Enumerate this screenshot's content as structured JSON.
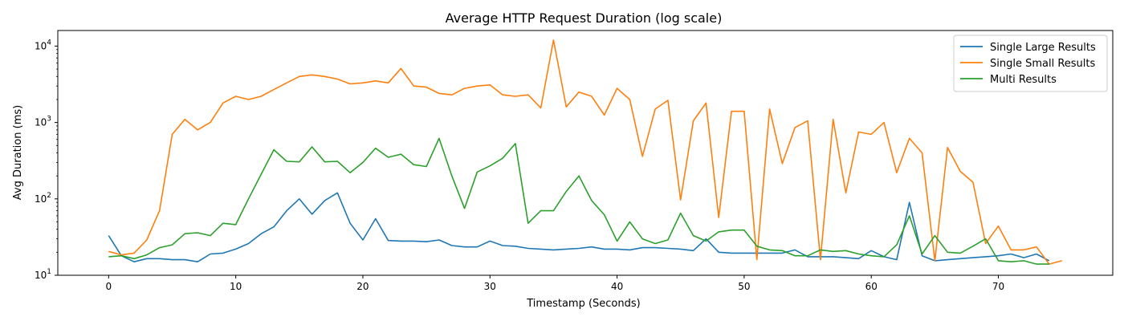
{
  "chart_data": {
    "type": "line",
    "title": "Average HTTP Request Duration (log scale)",
    "xlabel": "Timestamp (Seconds)",
    "ylabel": "Avg Duration (ms)",
    "xlim": [
      -4,
      79
    ],
    "ylim": [
      10,
      16000
    ],
    "yscale": "log",
    "grid": false,
    "legend_position": "top-right",
    "x_ticks": [
      0,
      10,
      20,
      30,
      40,
      50,
      60,
      70
    ],
    "x_tick_labels": [
      "0",
      "10",
      "20",
      "30",
      "40",
      "50",
      "60",
      "70"
    ],
    "y_ticks": [
      10,
      100,
      1000,
      10000
    ],
    "y_tick_labels": [
      "10",
      "10",
      "10",
      "10"
    ],
    "y_tick_exponents": [
      "1",
      "2",
      "3",
      "4"
    ],
    "series": [
      {
        "name": "Single Large Results",
        "color": "#1f77b4",
        "x": [
          0,
          1,
          2,
          3,
          4,
          5,
          6,
          7,
          8,
          9,
          10,
          11,
          12,
          13,
          14,
          15,
          16,
          17,
          18,
          19,
          20,
          21,
          22,
          23,
          24,
          25,
          26,
          27,
          28,
          29,
          30,
          31,
          32,
          33,
          34,
          35,
          36,
          37,
          38,
          39,
          40,
          41,
          42,
          43,
          44,
          45,
          46,
          47,
          48,
          49,
          50,
          51,
          52,
          53,
          54,
          55,
          56,
          57,
          58,
          59,
          60,
          61,
          62,
          63,
          64,
          65,
          66,
          67,
          68,
          69,
          70,
          71,
          72,
          73,
          74
        ],
        "values": [
          33,
          18,
          15,
          16.5,
          16.5,
          16,
          16,
          15,
          19,
          19.5,
          22,
          26,
          35,
          43,
          70,
          100,
          63,
          95,
          120,
          48,
          29,
          55,
          28.5,
          28,
          28,
          27.5,
          29,
          24.5,
          23.5,
          23.5,
          28,
          24.5,
          24,
          22.5,
          22,
          21.5,
          22,
          22.5,
          23.5,
          22,
          22,
          21.5,
          23,
          23,
          22.5,
          22,
          21,
          30,
          20,
          19.5,
          19.5,
          19.5,
          19.5,
          19.5,
          21.5,
          17.5,
          17.5,
          17.5,
          17,
          16.5,
          21,
          17.5,
          16,
          90,
          18,
          15.5,
          16,
          16.5,
          17,
          17.5,
          18,
          19,
          17,
          19,
          15.5
        ]
      },
      {
        "name": "Single Small Results",
        "color": "#ff7f0e",
        "x": [
          0,
          1,
          2,
          3,
          4,
          5,
          6,
          7,
          8,
          9,
          10,
          11,
          12,
          13,
          14,
          15,
          16,
          17,
          18,
          19,
          20,
          21,
          22,
          23,
          24,
          25,
          26,
          27,
          28,
          29,
          30,
          31,
          32,
          33,
          34,
          35,
          36,
          37,
          38,
          39,
          40,
          41,
          42,
          43,
          44,
          45,
          46,
          47,
          48,
          49,
          50,
          51,
          52,
          53,
          54,
          55,
          56,
          57,
          58,
          59,
          60,
          61,
          62,
          63,
          64,
          65,
          66,
          67,
          68,
          69,
          70,
          71,
          72,
          73,
          74,
          75
        ],
        "values": [
          20.5,
          18.5,
          19.5,
          29,
          70,
          700,
          1100,
          800,
          1000,
          1800,
          2200,
          2000,
          2200,
          2700,
          3300,
          4000,
          4200,
          4000,
          3700,
          3200,
          3300,
          3500,
          3300,
          5100,
          3000,
          2900,
          2400,
          2300,
          2800,
          3000,
          3100,
          2300,
          2200,
          2300,
          1550,
          12000,
          1600,
          2500,
          2200,
          1250,
          2800,
          2000,
          360,
          1500,
          1950,
          97,
          1050,
          1800,
          57,
          1400,
          1400,
          16,
          1500,
          290,
          860,
          1050,
          16,
          1100,
          120,
          750,
          700,
          1000,
          220,
          620,
          400,
          15.5,
          470,
          230,
          165,
          26,
          44,
          21.5,
          21.5,
          23.5,
          14,
          15.5
        ]
      },
      {
        "name": "Multi Results",
        "color": "#2ca02c",
        "x": [
          0,
          1,
          2,
          3,
          4,
          5,
          6,
          7,
          8,
          9,
          10,
          11,
          12,
          13,
          14,
          15,
          16,
          17,
          18,
          19,
          20,
          21,
          22,
          23,
          24,
          25,
          26,
          27,
          28,
          29,
          30,
          31,
          32,
          33,
          34,
          35,
          36,
          37,
          38,
          39,
          40,
          41,
          42,
          43,
          44,
          45,
          46,
          47,
          48,
          49,
          50,
          51,
          52,
          53,
          54,
          55,
          56,
          57,
          58,
          59,
          60,
          61,
          62,
          63,
          64,
          65,
          66,
          67,
          68,
          69,
          70,
          71,
          72,
          73,
          74
        ],
        "values": [
          17.5,
          18,
          16.5,
          18.5,
          23,
          25,
          35,
          36,
          33,
          48,
          46,
          100,
          210,
          440,
          310,
          305,
          480,
          305,
          310,
          220,
          300,
          460,
          350,
          385,
          280,
          265,
          620,
          200,
          75,
          225,
          270,
          340,
          530,
          48,
          70,
          70,
          125,
          200,
          95,
          62,
          28,
          50,
          30,
          26,
          29,
          65,
          33,
          28,
          37,
          39,
          39,
          24,
          21.5,
          21,
          18,
          18,
          21.5,
          20.5,
          21,
          19,
          18,
          17.5,
          25,
          60,
          19,
          33,
          20,
          19.5,
          24,
          30,
          15.5,
          15,
          15.5,
          14,
          14
        ]
      }
    ]
  }
}
